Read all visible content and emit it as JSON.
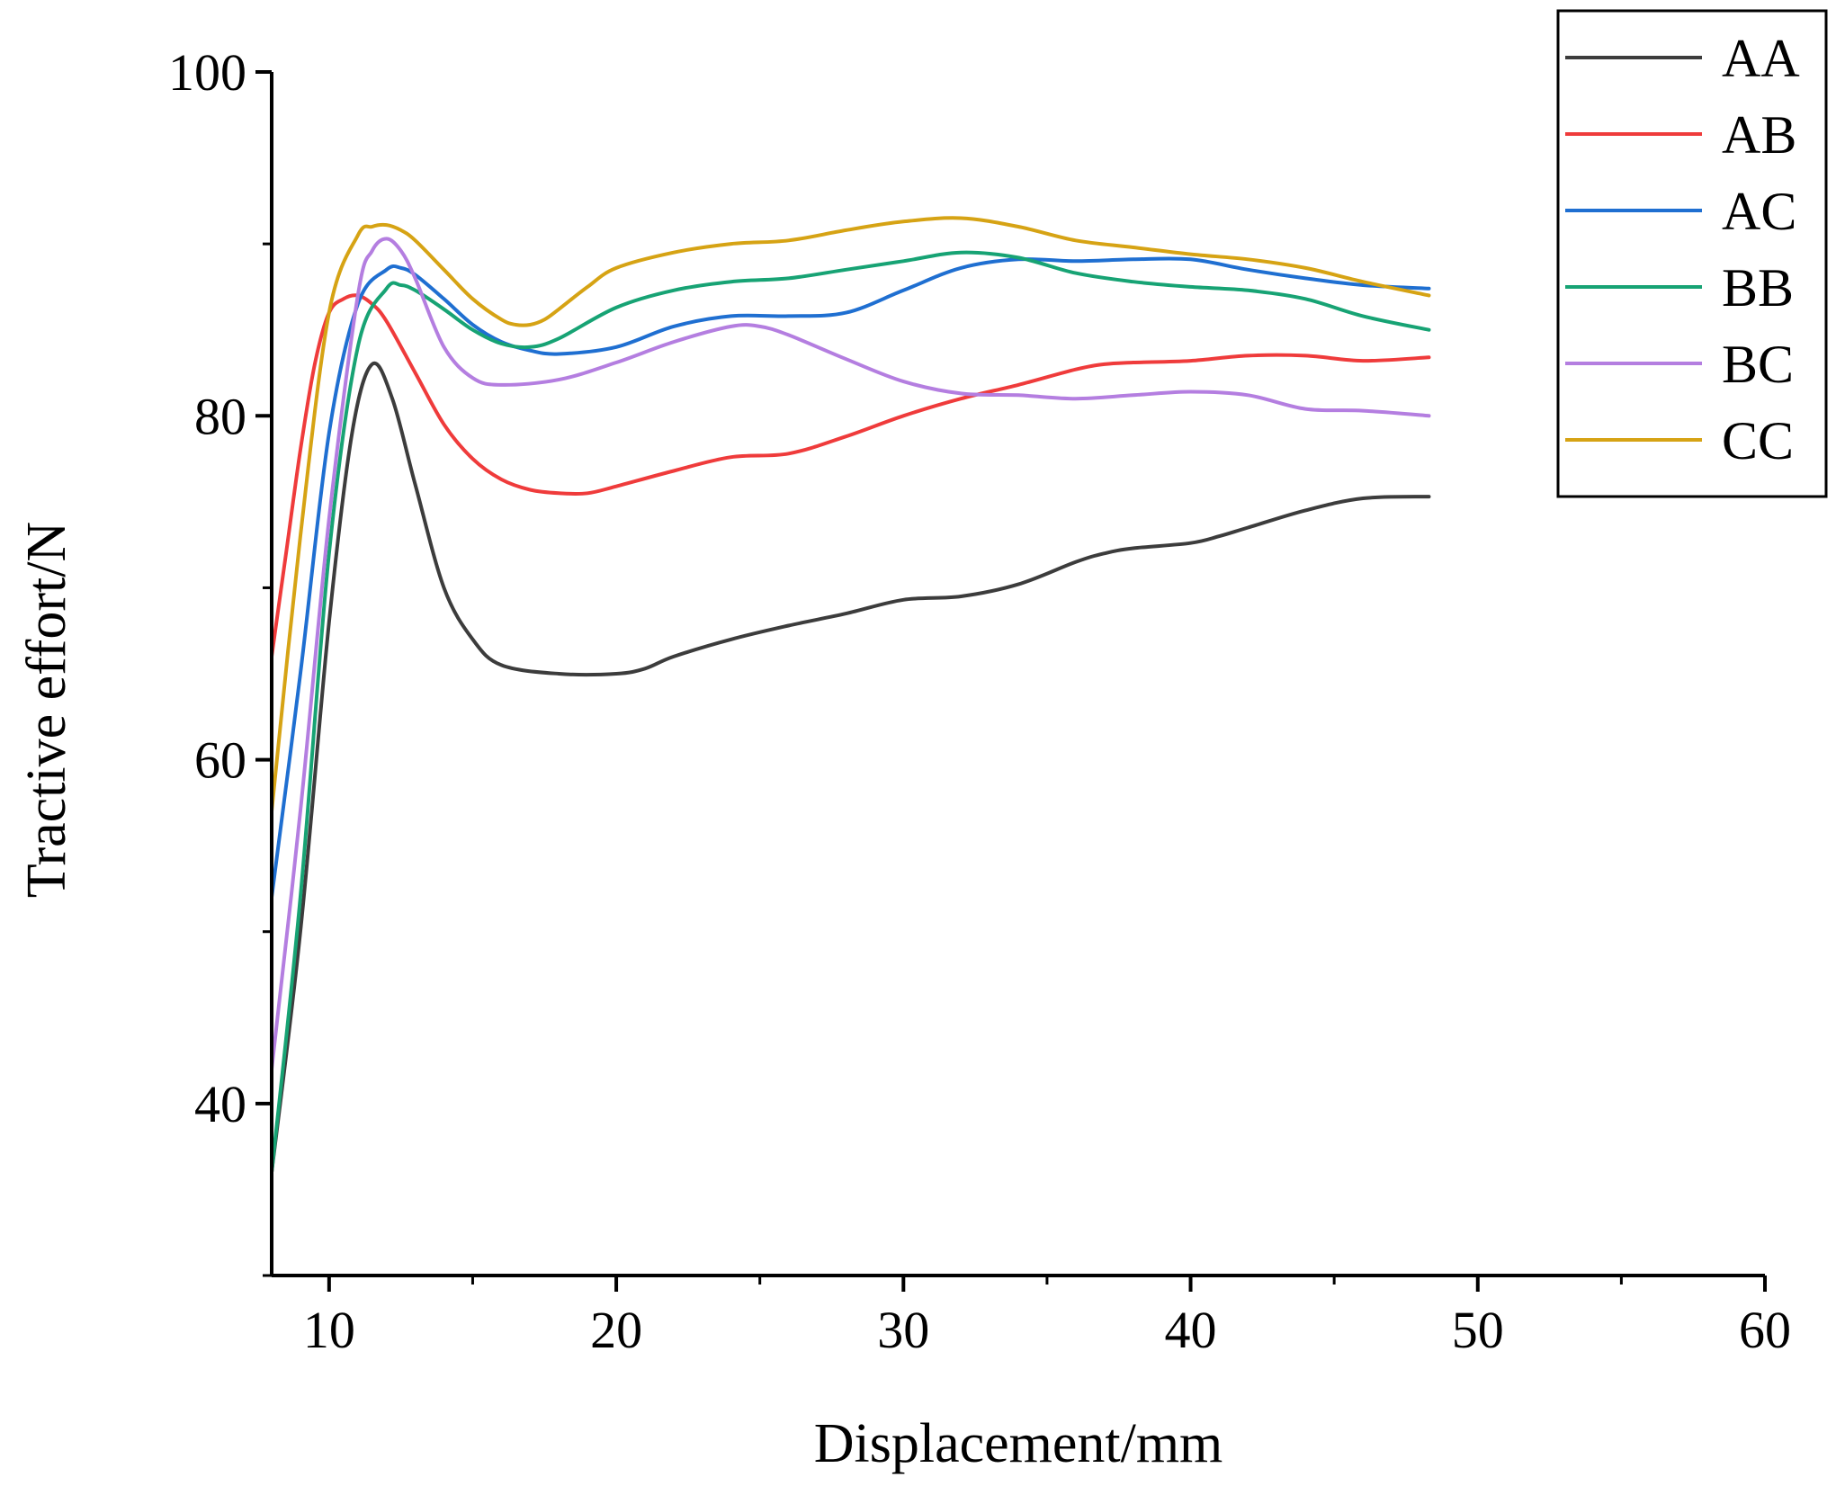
{
  "chart_data": {
    "type": "line",
    "title": "",
    "xlabel": "Displacement/mm",
    "ylabel": "Tractive effort/N",
    "xlim": [
      8,
      60
    ],
    "ylim": [
      30,
      100
    ],
    "xticks": [
      10,
      20,
      30,
      40,
      50,
      60
    ],
    "xtick_labels": [
      "10",
      "20",
      "30",
      "40",
      "50",
      "60"
    ],
    "yticks": [
      40,
      60,
      80,
      100
    ],
    "ytick_labels": [
      "40",
      "60",
      "80",
      "100"
    ],
    "grid": false,
    "legend_position": "top-right",
    "series": [
      {
        "name": "AA",
        "color": "#3c3c3c",
        "x": [
          8,
          9,
          10,
          10.8,
          11.5,
          12.2,
          13,
          14,
          15,
          16,
          18,
          20,
          21,
          22,
          24,
          26,
          28,
          30,
          32,
          34,
          36,
          37,
          38,
          40,
          41,
          42,
          44,
          46,
          48.3
        ],
        "y": [
          36,
          50,
          68,
          79,
          83,
          81,
          76,
          70,
          67,
          65.5,
          65,
          65,
          65.3,
          66,
          67,
          67.8,
          68.5,
          69.3,
          69.5,
          70.2,
          71.5,
          72,
          72.3,
          72.6,
          73,
          73.5,
          74.5,
          75.2,
          75.3
        ]
      },
      {
        "name": "AB",
        "color": "#ef3b3b",
        "x": [
          8,
          8.5,
          9,
          9.5,
          10,
          10.5,
          11,
          11.5,
          12,
          13,
          14,
          15,
          16,
          17,
          18,
          19,
          20,
          22,
          24,
          26,
          28,
          30,
          32,
          34,
          36,
          37,
          38,
          40,
          42,
          44,
          46,
          48.3
        ],
        "y": [
          66,
          72,
          78,
          83,
          86,
          86.8,
          87,
          86.5,
          85.5,
          82.5,
          79.5,
          77.5,
          76.3,
          75.7,
          75.5,
          75.5,
          75.9,
          76.8,
          77.6,
          77.8,
          78.8,
          80,
          81,
          81.8,
          82.7,
          83,
          83.1,
          83.2,
          83.5,
          83.5,
          83.2,
          83.4
        ]
      },
      {
        "name": "AC",
        "color": "#1f6fd1",
        "x": [
          8,
          9,
          10,
          11,
          12,
          12.5,
          13,
          14,
          15,
          16,
          17,
          18,
          20,
          22,
          24,
          26,
          28,
          30,
          32,
          34,
          36,
          38,
          40,
          42,
          44,
          46,
          48.3
        ],
        "y": [
          52,
          65,
          79,
          86.5,
          88.5,
          88.6,
          88.2,
          86.8,
          85.3,
          84.3,
          83.8,
          83.6,
          84,
          85.2,
          85.8,
          85.8,
          86,
          87.3,
          88.6,
          89.1,
          89,
          89.1,
          89.1,
          88.5,
          88,
          87.6,
          87.4
        ]
      },
      {
        "name": "BB",
        "color": "#17a374",
        "x": [
          8,
          9,
          10,
          11,
          12,
          12.5,
          13,
          14,
          15,
          16,
          17,
          18,
          20,
          22,
          24,
          26,
          28,
          30,
          32,
          34,
          36,
          38,
          40,
          42,
          44,
          46,
          48.3
        ],
        "y": [
          36,
          52,
          72,
          84,
          87.4,
          87.6,
          87.3,
          86.2,
          85,
          84.2,
          84,
          84.5,
          86.3,
          87.3,
          87.8,
          88,
          88.5,
          89,
          89.5,
          89.2,
          88.3,
          87.8,
          87.5,
          87.3,
          86.8,
          85.8,
          85
        ]
      },
      {
        "name": "BC",
        "color": "#b47ee0",
        "x": [
          8,
          9,
          10,
          11,
          11.5,
          12,
          12.5,
          13,
          14,
          15,
          16,
          18,
          20,
          22,
          24,
          25,
          26,
          28,
          30,
          32,
          34,
          36,
          38,
          40,
          42,
          44,
          46,
          48.3
        ],
        "y": [
          42,
          57,
          74,
          87,
          89.6,
          90.3,
          89.6,
          88,
          84,
          82.2,
          81.8,
          82.1,
          83.1,
          84.3,
          85.2,
          85.2,
          84.7,
          83.3,
          82,
          81.3,
          81.2,
          81,
          81.2,
          81.4,
          81.2,
          80.4,
          80.3,
          80
        ]
      },
      {
        "name": "CC",
        "color": "#d6a314",
        "x": [
          8,
          9,
          10,
          11,
          11.5,
          12,
          12.5,
          13,
          14,
          15,
          16,
          16.5,
          17,
          17.5,
          18,
          19,
          20,
          22,
          24,
          26,
          28,
          30,
          32,
          34,
          36,
          38,
          40,
          42,
          44,
          46,
          48.3
        ],
        "y": [
          57,
          73,
          86,
          90.5,
          91,
          91.1,
          90.8,
          90.2,
          88.5,
          86.8,
          85.6,
          85.3,
          85.3,
          85.6,
          86.2,
          87.5,
          88.6,
          89.5,
          90,
          90.2,
          90.8,
          91.3,
          91.5,
          91,
          90.2,
          89.8,
          89.4,
          89.1,
          88.6,
          87.8,
          87
        ]
      }
    ]
  }
}
